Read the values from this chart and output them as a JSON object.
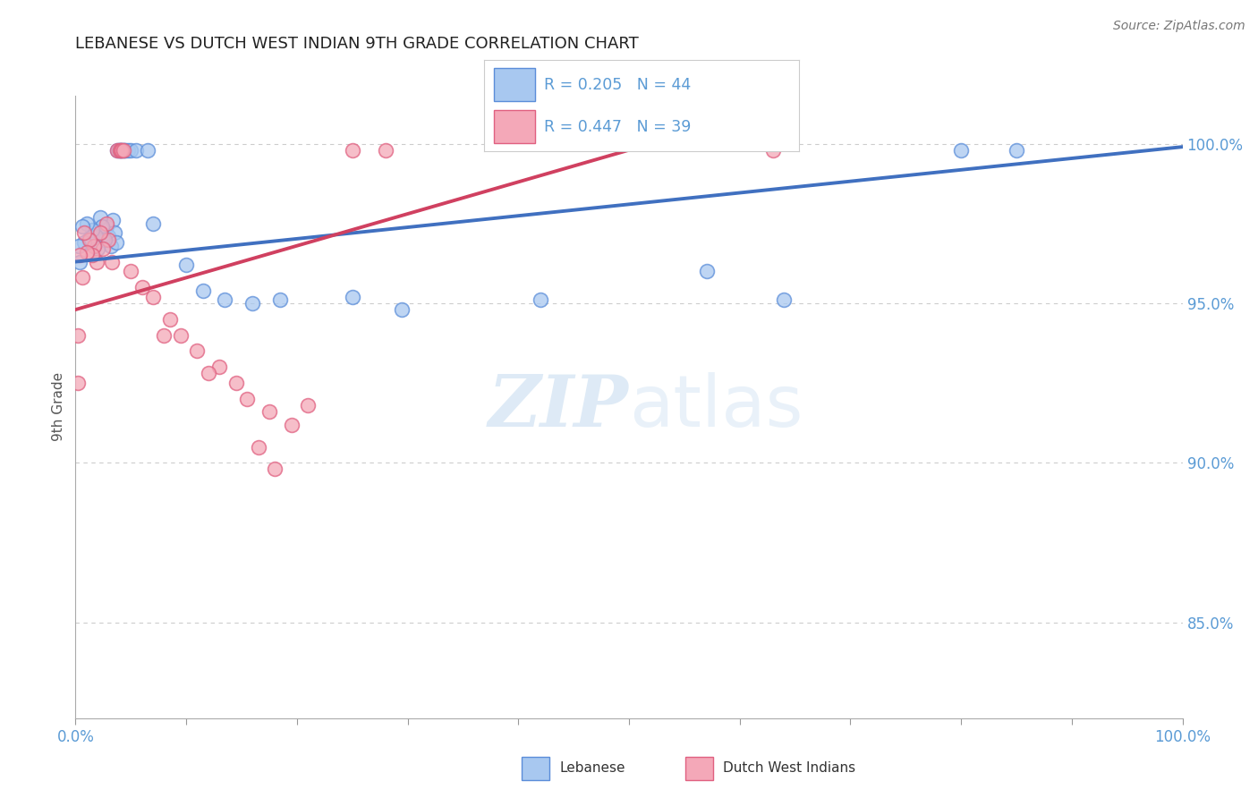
{
  "title": "LEBANESE VS DUTCH WEST INDIAN 9TH GRADE CORRELATION CHART",
  "source": "Source: ZipAtlas.com",
  "ylabel": "9th Grade",
  "ylabel_right_ticks": [
    1.0,
    0.95,
    0.9,
    0.85
  ],
  "ylabel_right_labels": [
    "100.0%",
    "95.0%",
    "90.0%",
    "85.0%"
  ],
  "legend_blue_r": "R = 0.205",
  "legend_blue_n": "N = 44",
  "legend_pink_r": "R = 0.447",
  "legend_pink_n": "N = 39",
  "blue_color": "#A8C8F0",
  "pink_color": "#F4A8B8",
  "blue_edge_color": "#5B8DD9",
  "pink_edge_color": "#E06080",
  "blue_line_color": "#4070C0",
  "pink_line_color": "#D04060",
  "blue_scatter": [
    [
      0.028,
      0.974
    ],
    [
      0.03,
      0.971
    ],
    [
      0.032,
      0.968
    ],
    [
      0.034,
      0.976
    ],
    [
      0.035,
      0.972
    ],
    [
      0.037,
      0.969
    ],
    [
      0.038,
      0.998
    ],
    [
      0.039,
      0.998
    ],
    [
      0.04,
      0.998
    ],
    [
      0.041,
      0.998
    ],
    [
      0.042,
      0.998
    ],
    [
      0.043,
      0.998
    ],
    [
      0.044,
      0.998
    ],
    [
      0.045,
      0.998
    ],
    [
      0.047,
      0.998
    ],
    [
      0.05,
      0.998
    ],
    [
      0.055,
      0.998
    ],
    [
      0.065,
      0.998
    ],
    [
      0.022,
      0.977
    ],
    [
      0.024,
      0.974
    ],
    [
      0.026,
      0.97
    ],
    [
      0.018,
      0.971
    ],
    [
      0.02,
      0.967
    ],
    [
      0.015,
      0.973
    ],
    [
      0.017,
      0.968
    ],
    [
      0.01,
      0.975
    ],
    [
      0.012,
      0.97
    ],
    [
      0.006,
      0.974
    ],
    [
      0.008,
      0.969
    ],
    [
      0.003,
      0.968
    ],
    [
      0.004,
      0.963
    ],
    [
      0.07,
      0.975
    ],
    [
      0.1,
      0.962
    ],
    [
      0.115,
      0.954
    ],
    [
      0.135,
      0.951
    ],
    [
      0.16,
      0.95
    ],
    [
      0.185,
      0.951
    ],
    [
      0.25,
      0.952
    ],
    [
      0.295,
      0.948
    ],
    [
      0.42,
      0.951
    ],
    [
      0.57,
      0.96
    ],
    [
      0.64,
      0.951
    ],
    [
      0.8,
      0.998
    ],
    [
      0.85,
      0.998
    ]
  ],
  "pink_scatter": [
    [
      0.038,
      0.998
    ],
    [
      0.04,
      0.998
    ],
    [
      0.041,
      0.998
    ],
    [
      0.042,
      0.998
    ],
    [
      0.043,
      0.998
    ],
    [
      0.028,
      0.975
    ],
    [
      0.03,
      0.97
    ],
    [
      0.022,
      0.972
    ],
    [
      0.025,
      0.967
    ],
    [
      0.017,
      0.968
    ],
    [
      0.019,
      0.963
    ],
    [
      0.013,
      0.97
    ],
    [
      0.015,
      0.965
    ],
    [
      0.008,
      0.972
    ],
    [
      0.01,
      0.966
    ],
    [
      0.004,
      0.965
    ],
    [
      0.006,
      0.958
    ],
    [
      0.002,
      0.94
    ],
    [
      0.033,
      0.963
    ],
    [
      0.05,
      0.96
    ],
    [
      0.06,
      0.955
    ],
    [
      0.07,
      0.952
    ],
    [
      0.085,
      0.945
    ],
    [
      0.095,
      0.94
    ],
    [
      0.11,
      0.935
    ],
    [
      0.13,
      0.93
    ],
    [
      0.145,
      0.925
    ],
    [
      0.155,
      0.92
    ],
    [
      0.175,
      0.916
    ],
    [
      0.195,
      0.912
    ],
    [
      0.165,
      0.905
    ],
    [
      0.18,
      0.898
    ],
    [
      0.21,
      0.918
    ],
    [
      0.08,
      0.94
    ],
    [
      0.12,
      0.928
    ],
    [
      0.002,
      0.925
    ],
    [
      0.25,
      0.998
    ],
    [
      0.28,
      0.998
    ],
    [
      0.63,
      0.998
    ]
  ],
  "blue_line": [
    [
      0.0,
      0.963
    ],
    [
      1.0,
      0.999
    ]
  ],
  "pink_line": [
    [
      0.0,
      0.948
    ],
    [
      0.5,
      0.998
    ]
  ],
  "watermark_zip": "ZIP",
  "watermark_atlas": "atlas",
  "background_color": "#ffffff",
  "axis_color": "#5B9BD5",
  "grid_color": "#cccccc",
  "xlim": [
    0.0,
    1.0
  ],
  "ylim": [
    0.82,
    1.015
  ]
}
